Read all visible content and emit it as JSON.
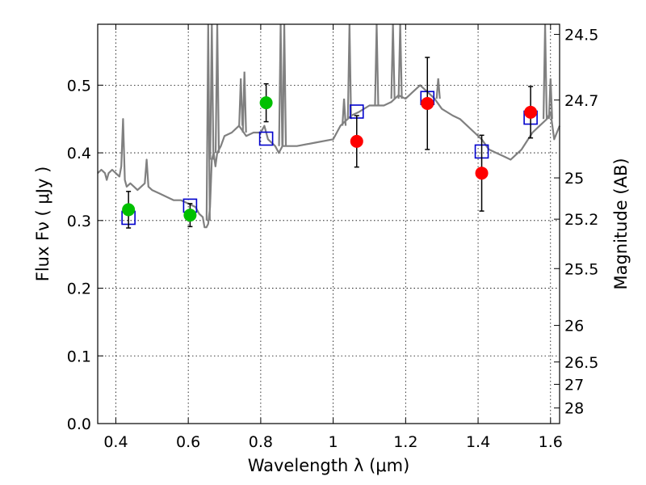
{
  "chart_data": {
    "type": "scatter",
    "title": "",
    "xlabel": "Wavelength λ (μm)",
    "ylabel": "Flux Fν ( μJy )",
    "y2label": "Magnitude (AB)",
    "xlim": [
      0.35,
      1.625
    ],
    "ylim": [
      0.0,
      0.59
    ],
    "grid": true,
    "x_ticks": [
      0.4,
      0.6,
      0.8,
      1.0,
      1.2,
      1.4,
      1.6
    ],
    "x_tick_labels": [
      "0.4",
      "0.6",
      "0.8",
      "1",
      "1.2",
      "1.4",
      "1.6"
    ],
    "y_ticks": [
      0.0,
      0.1,
      0.2,
      0.3,
      0.4,
      0.5
    ],
    "y_tick_labels": [
      "0.0",
      "0.1",
      "0.2",
      "0.3",
      "0.4",
      "0.5"
    ],
    "y2_ticks": [
      {
        "label": "24.5",
        "flux": 0.575
      },
      {
        "label": "24.7",
        "flux": 0.478
      },
      {
        "label": "25",
        "flux": 0.363
      },
      {
        "label": "25.2",
        "flux": 0.302
      },
      {
        "label": "25.5",
        "flux": 0.229
      },
      {
        "label": "26",
        "flux": 0.145
      },
      {
        "label": "26.5",
        "flux": 0.091
      },
      {
        "label": "27",
        "flux": 0.058
      },
      {
        "label": "28",
        "flux": 0.023
      }
    ],
    "series": [
      {
        "kind": "points",
        "color": "#00c000",
        "marker": "circle",
        "x": [
          0.435,
          0.605,
          0.815
        ],
        "y": [
          0.316,
          0.308,
          0.474
        ],
        "yerr": [
          0.027,
          0.017,
          0.028
        ]
      },
      {
        "kind": "points",
        "color": "#ff0000",
        "marker": "circle",
        "x": [
          1.065,
          1.26,
          1.41,
          1.545
        ],
        "y": [
          0.417,
          0.473,
          0.37,
          0.46
        ],
        "yerr": [
          0.038,
          0.068,
          0.056,
          0.038
        ]
      },
      {
        "kind": "model",
        "color": "#0000cc",
        "marker": "open-square",
        "x": [
          0.435,
          0.605,
          0.815,
          1.065,
          1.26,
          1.41,
          1.545
        ],
        "y": [
          0.304,
          0.322,
          0.421,
          0.461,
          0.481,
          0.402,
          0.452
        ]
      },
      {
        "kind": "spectrum",
        "color": "#808080",
        "x": [
          0.35,
          0.36,
          0.37,
          0.375,
          0.38,
          0.39,
          0.4,
          0.41,
          0.415,
          0.42,
          0.425,
          0.43,
          0.44,
          0.45,
          0.46,
          0.47,
          0.48,
          0.485,
          0.49,
          0.5,
          0.52,
          0.54,
          0.56,
          0.58,
          0.6,
          0.62,
          0.63,
          0.64,
          0.645,
          0.65,
          0.655,
          0.66,
          0.665,
          0.67,
          0.675,
          0.68,
          0.69,
          0.7,
          0.72,
          0.74,
          0.76,
          0.78,
          0.8,
          0.81,
          0.82,
          0.84,
          0.85,
          0.86,
          0.9,
          0.95,
          1.0,
          1.02,
          1.04,
          1.05,
          1.07,
          1.1,
          1.12,
          1.14,
          1.16,
          1.18,
          1.2,
          1.22,
          1.24,
          1.26,
          1.28,
          1.3,
          1.33,
          1.35,
          1.37,
          1.39,
          1.41,
          1.43,
          1.45,
          1.47,
          1.49,
          1.5,
          1.52,
          1.55,
          1.57,
          1.59,
          1.6,
          1.61,
          1.625
        ],
        "y": [
          0.37,
          0.375,
          0.37,
          0.36,
          0.37,
          0.375,
          0.37,
          0.365,
          0.38,
          0.45,
          0.36,
          0.35,
          0.355,
          0.35,
          0.345,
          0.35,
          0.355,
          0.39,
          0.35,
          0.345,
          0.34,
          0.335,
          0.33,
          0.33,
          0.325,
          0.32,
          0.31,
          0.305,
          0.29,
          0.29,
          0.295,
          0.32,
          0.39,
          0.4,
          0.38,
          0.4,
          0.41,
          0.425,
          0.43,
          0.44,
          0.425,
          0.43,
          0.43,
          0.44,
          0.42,
          0.41,
          0.4,
          0.41,
          0.41,
          0.415,
          0.42,
          0.44,
          0.45,
          0.455,
          0.46,
          0.47,
          0.47,
          0.47,
          0.475,
          0.485,
          0.48,
          0.49,
          0.5,
          0.49,
          0.48,
          0.465,
          0.455,
          0.45,
          0.44,
          0.43,
          0.42,
          0.405,
          0.4,
          0.395,
          0.39,
          0.395,
          0.405,
          0.43,
          0.44,
          0.45,
          0.46,
          0.42,
          0.44
        ],
        "spikes": [
          {
            "x": 0.655,
            "top": 0.59,
            "base": 0.3
          },
          {
            "x": 0.665,
            "top": 0.59,
            "base": 0.39
          },
          {
            "x": 0.68,
            "top": 0.59,
            "base": 0.4
          },
          {
            "x": 0.745,
            "top": 0.51,
            "base": 0.44
          },
          {
            "x": 0.755,
            "top": 0.52,
            "base": 0.43
          },
          {
            "x": 0.855,
            "top": 0.59,
            "base": 0.41
          },
          {
            "x": 0.865,
            "top": 0.59,
            "base": 0.41
          },
          {
            "x": 1.03,
            "top": 0.48,
            "base": 0.44
          },
          {
            "x": 1.045,
            "top": 0.59,
            "base": 0.45
          },
          {
            "x": 1.12,
            "top": 0.59,
            "base": 0.47
          },
          {
            "x": 1.165,
            "top": 0.59,
            "base": 0.48
          },
          {
            "x": 1.185,
            "top": 0.59,
            "base": 0.48
          },
          {
            "x": 1.29,
            "top": 0.51,
            "base": 0.48
          },
          {
            "x": 1.585,
            "top": 0.59,
            "base": 0.45
          },
          {
            "x": 1.6,
            "top": 0.51,
            "base": 0.45
          }
        ]
      }
    ]
  }
}
